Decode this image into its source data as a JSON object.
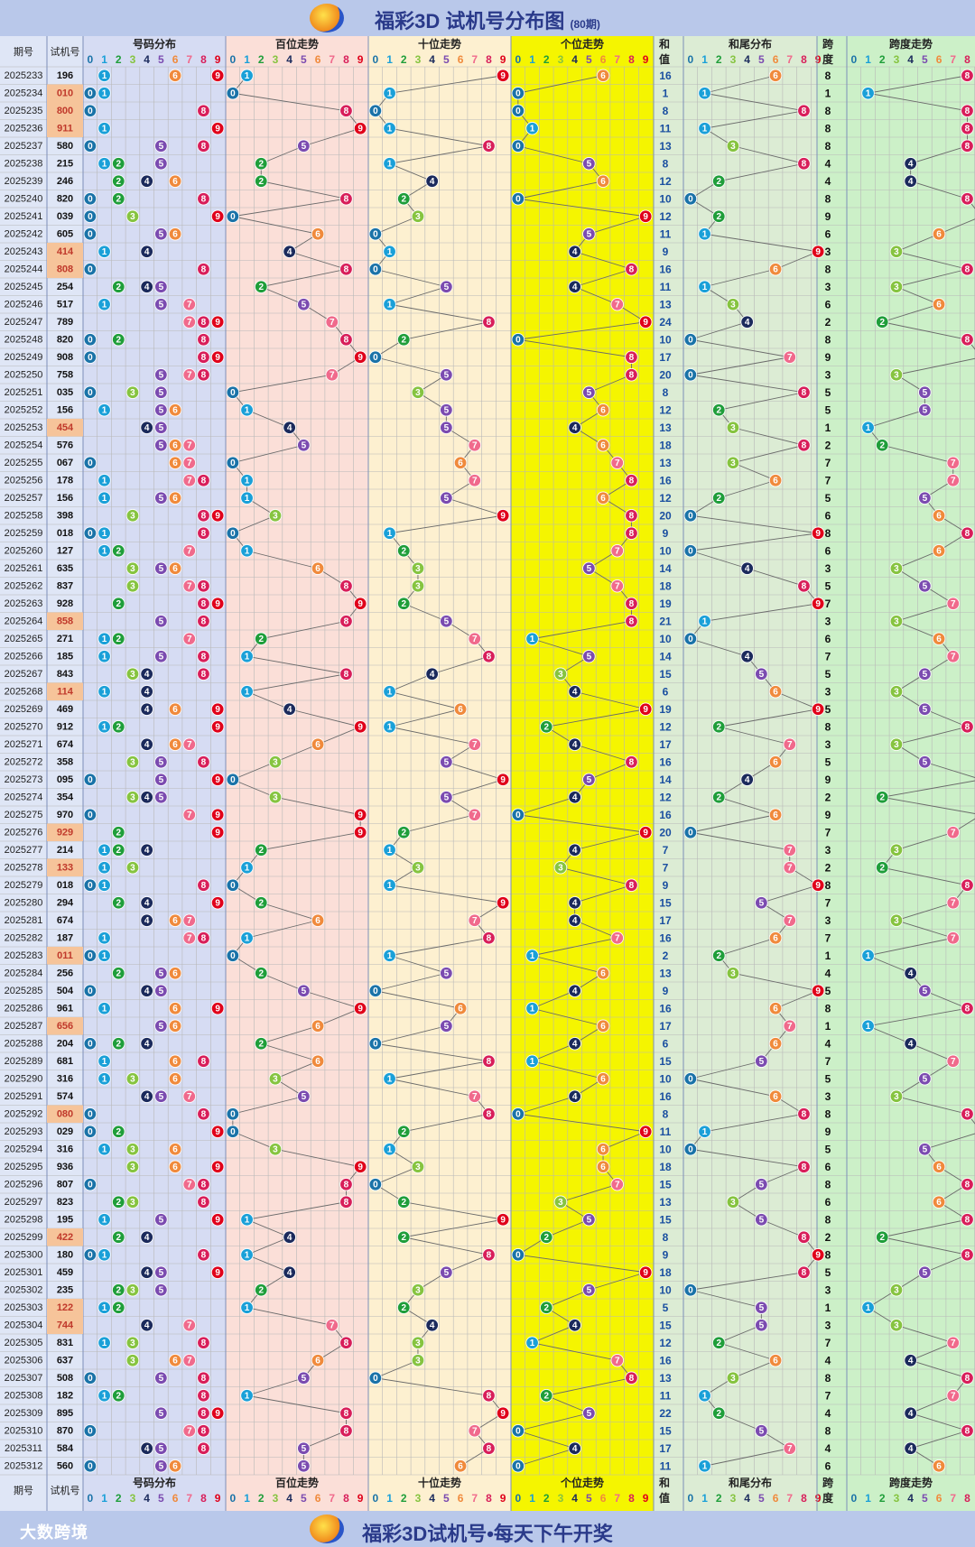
{
  "header": {
    "title": "福彩3D 试机号分布图",
    "period_count": "(80期)"
  },
  "footer": {
    "slogan": "福彩3D试机号•每天下午开奖",
    "brand": "大数跨境"
  },
  "columns": {
    "issue": "期号",
    "trial": "试机号",
    "dist": "号码分布",
    "hundreds": "百位走势",
    "tens": "十位走势",
    "units": "个位走势",
    "sum": [
      "和",
      "值"
    ],
    "sum_tail": "和尾分布",
    "span": [
      "跨",
      "度"
    ],
    "span_trend": "跨度走势",
    "digits": [
      "0",
      "1",
      "2",
      "3",
      "4",
      "5",
      "6",
      "7",
      "8",
      "9"
    ]
  },
  "colors": {
    "digit": [
      "#1a73a8",
      "#1aa0d8",
      "#1f9e3a",
      "#86c440",
      "#1b2a5c",
      "#7b4bb0",
      "#f08a3c",
      "#f06a8c",
      "#d81e5a",
      "#e0001a"
    ],
    "dist_bg": "#d6dcf3",
    "hundreds_bg": "#fbdfd8",
    "tens_bg": "#fdf0d0",
    "units_bg": "#f5f500",
    "sum_tail_bg": "#dcecd4",
    "span_bg": "#ccf0c8",
    "highlight": "#f6c49a"
  },
  "chart_data": {
    "type": "table",
    "title": "福彩3D 试机号分布图",
    "rows": [
      {
        "issue": "2025233",
        "trial": "196",
        "sum": 16,
        "span": 8
      },
      {
        "issue": "2025234",
        "trial": "010",
        "sum": 1,
        "span": 1
      },
      {
        "issue": "2025235",
        "trial": "800",
        "sum": 8,
        "span": 8
      },
      {
        "issue": "2025236",
        "trial": "911",
        "sum": 11,
        "span": 8
      },
      {
        "issue": "2025237",
        "trial": "580",
        "sum": 13,
        "span": 8
      },
      {
        "issue": "2025238",
        "trial": "215",
        "sum": 8,
        "span": 4
      },
      {
        "issue": "2025239",
        "trial": "246",
        "sum": 12,
        "span": 4
      },
      {
        "issue": "2025240",
        "trial": "820",
        "sum": 10,
        "span": 8
      },
      {
        "issue": "2025241",
        "trial": "039",
        "sum": 12,
        "span": 9
      },
      {
        "issue": "2025242",
        "trial": "605",
        "sum": 11,
        "span": 6
      },
      {
        "issue": "2025243",
        "trial": "414",
        "sum": 9,
        "span": 3
      },
      {
        "issue": "2025244",
        "trial": "808",
        "sum": 16,
        "span": 8
      },
      {
        "issue": "2025245",
        "trial": "254",
        "sum": 11,
        "span": 3
      },
      {
        "issue": "2025246",
        "trial": "517",
        "sum": 13,
        "span": 6
      },
      {
        "issue": "2025247",
        "trial": "789",
        "sum": 24,
        "span": 2
      },
      {
        "issue": "2025248",
        "trial": "820",
        "sum": 10,
        "span": 8
      },
      {
        "issue": "2025249",
        "trial": "908",
        "sum": 17,
        "span": 9
      },
      {
        "issue": "2025250",
        "trial": "758",
        "sum": 20,
        "span": 3
      },
      {
        "issue": "2025251",
        "trial": "035",
        "sum": 8,
        "span": 5
      },
      {
        "issue": "2025252",
        "trial": "156",
        "sum": 12,
        "span": 5
      },
      {
        "issue": "2025253",
        "trial": "454",
        "sum": 13,
        "span": 1
      },
      {
        "issue": "2025254",
        "trial": "576",
        "sum": 18,
        "span": 2
      },
      {
        "issue": "2025255",
        "trial": "067",
        "sum": 13,
        "span": 7
      },
      {
        "issue": "2025256",
        "trial": "178",
        "sum": 16,
        "span": 7
      },
      {
        "issue": "2025257",
        "trial": "156",
        "sum": 12,
        "span": 5
      },
      {
        "issue": "2025258",
        "trial": "398",
        "sum": 20,
        "span": 6
      },
      {
        "issue": "2025259",
        "trial": "018",
        "sum": 9,
        "span": 8
      },
      {
        "issue": "2025260",
        "trial": "127",
        "sum": 10,
        "span": 6
      },
      {
        "issue": "2025261",
        "trial": "635",
        "sum": 14,
        "span": 3
      },
      {
        "issue": "2025262",
        "trial": "837",
        "sum": 18,
        "span": 5
      },
      {
        "issue": "2025263",
        "trial": "928",
        "sum": 19,
        "span": 7
      },
      {
        "issue": "2025264",
        "trial": "858",
        "sum": 21,
        "span": 3
      },
      {
        "issue": "2025265",
        "trial": "271",
        "sum": 10,
        "span": 6
      },
      {
        "issue": "2025266",
        "trial": "185",
        "sum": 14,
        "span": 7
      },
      {
        "issue": "2025267",
        "trial": "843",
        "sum": 15,
        "span": 5
      },
      {
        "issue": "2025268",
        "trial": "114",
        "sum": 6,
        "span": 3
      },
      {
        "issue": "2025269",
        "trial": "469",
        "sum": 19,
        "span": 5
      },
      {
        "issue": "2025270",
        "trial": "912",
        "sum": 12,
        "span": 8
      },
      {
        "issue": "2025271",
        "trial": "674",
        "sum": 17,
        "span": 3
      },
      {
        "issue": "2025272",
        "trial": "358",
        "sum": 16,
        "span": 5
      },
      {
        "issue": "2025273",
        "trial": "095",
        "sum": 14,
        "span": 9
      },
      {
        "issue": "2025274",
        "trial": "354",
        "sum": 12,
        "span": 2
      },
      {
        "issue": "2025275",
        "trial": "970",
        "sum": 16,
        "span": 9
      },
      {
        "issue": "2025276",
        "trial": "929",
        "sum": 20,
        "span": 7
      },
      {
        "issue": "2025277",
        "trial": "214",
        "sum": 7,
        "span": 3
      },
      {
        "issue": "2025278",
        "trial": "133",
        "sum": 7,
        "span": 2
      },
      {
        "issue": "2025279",
        "trial": "018",
        "sum": 9,
        "span": 8
      },
      {
        "issue": "2025280",
        "trial": "294",
        "sum": 15,
        "span": 7
      },
      {
        "issue": "2025281",
        "trial": "674",
        "sum": 17,
        "span": 3
      },
      {
        "issue": "2025282",
        "trial": "187",
        "sum": 16,
        "span": 7
      },
      {
        "issue": "2025283",
        "trial": "011",
        "sum": 2,
        "span": 1
      },
      {
        "issue": "2025284",
        "trial": "256",
        "sum": 13,
        "span": 4
      },
      {
        "issue": "2025285",
        "trial": "504",
        "sum": 9,
        "span": 5
      },
      {
        "issue": "2025286",
        "trial": "961",
        "sum": 16,
        "span": 8
      },
      {
        "issue": "2025287",
        "trial": "656",
        "sum": 17,
        "span": 1
      },
      {
        "issue": "2025288",
        "trial": "204",
        "sum": 6,
        "span": 4
      },
      {
        "issue": "2025289",
        "trial": "681",
        "sum": 15,
        "span": 7
      },
      {
        "issue": "2025290",
        "trial": "316",
        "sum": 10,
        "span": 5
      },
      {
        "issue": "2025291",
        "trial": "574",
        "sum": 16,
        "span": 3
      },
      {
        "issue": "2025292",
        "trial": "080",
        "sum": 8,
        "span": 8
      },
      {
        "issue": "2025293",
        "trial": "029",
        "sum": 11,
        "span": 9
      },
      {
        "issue": "2025294",
        "trial": "316",
        "sum": 10,
        "span": 5
      },
      {
        "issue": "2025295",
        "trial": "936",
        "sum": 18,
        "span": 6
      },
      {
        "issue": "2025296",
        "trial": "807",
        "sum": 15,
        "span": 8
      },
      {
        "issue": "2025297",
        "trial": "823",
        "sum": 13,
        "span": 6
      },
      {
        "issue": "2025298",
        "trial": "195",
        "sum": 15,
        "span": 8
      },
      {
        "issue": "2025299",
        "trial": "422",
        "sum": 8,
        "span": 2
      },
      {
        "issue": "2025300",
        "trial": "180",
        "sum": 9,
        "span": 8
      },
      {
        "issue": "2025301",
        "trial": "459",
        "sum": 18,
        "span": 5
      },
      {
        "issue": "2025302",
        "trial": "235",
        "sum": 10,
        "span": 3
      },
      {
        "issue": "2025303",
        "trial": "122",
        "sum": 5,
        "span": 1
      },
      {
        "issue": "2025304",
        "trial": "744",
        "sum": 15,
        "span": 3
      },
      {
        "issue": "2025305",
        "trial": "831",
        "sum": 12,
        "span": 7
      },
      {
        "issue": "2025306",
        "trial": "637",
        "sum": 16,
        "span": 4
      },
      {
        "issue": "2025307",
        "trial": "508",
        "sum": 13,
        "span": 8
      },
      {
        "issue": "2025308",
        "trial": "182",
        "sum": 11,
        "span": 7
      },
      {
        "issue": "2025309",
        "trial": "895",
        "sum": 22,
        "span": 4
      },
      {
        "issue": "2025310",
        "trial": "870",
        "sum": 15,
        "span": 8
      },
      {
        "issue": "2025311",
        "trial": "584",
        "sum": 17,
        "span": 4
      },
      {
        "issue": "2025312",
        "trial": "560",
        "sum": 11,
        "span": 6
      }
    ]
  }
}
